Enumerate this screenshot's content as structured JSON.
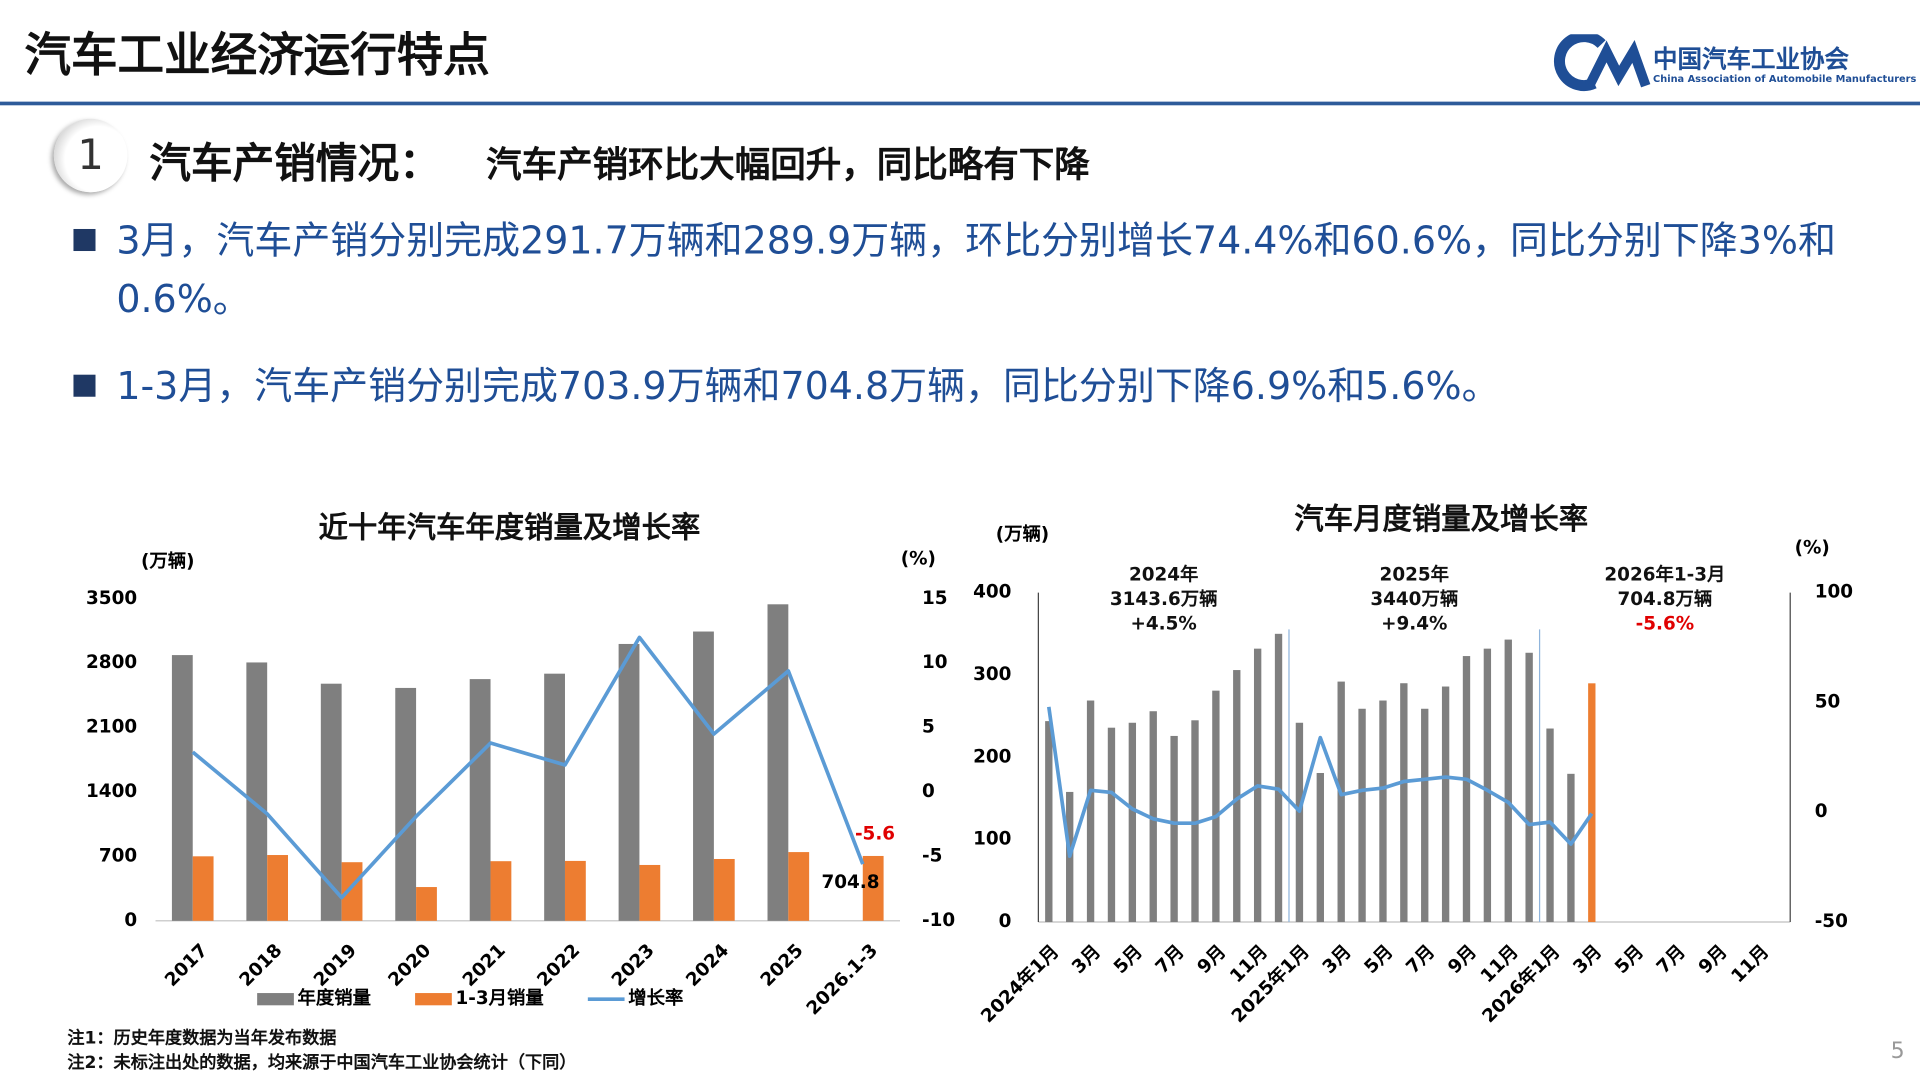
{
  "header": {
    "title": "汽车工业经济运行特点",
    "logo_cn": "中国汽车工业协会",
    "logo_en": "China Association of Automobile Manufacturers"
  },
  "section": {
    "number": "1",
    "title": "汽车产销情况：",
    "subtitle": "汽车产销环比大幅回升，同比略有下降"
  },
  "bullets": [
    "3月，汽车产销分别完成291.7万辆和289.9万辆，环比分别增长74.4%和60.6%，同比分别下降3%和0.6%。",
    "1-3月，汽车产销分别完成703.9万辆和704.8万辆，同比分别下降6.9%和5.6%。"
  ],
  "notes": [
    "注1：历史年度数据为当年发布数据",
    "注2：未标注出处的数据，均来源于中国汽车工业协会统计（下同）"
  ],
  "page_number": "5",
  "chart_data": [
    {
      "type": "bar",
      "title": "近十年汽车年度销量及增长率",
      "y_label": "(万辆)",
      "y2_label": "(%)",
      "categories": [
        "2017",
        "2018",
        "2019",
        "2020",
        "2021",
        "2022",
        "2023",
        "2024",
        "2025",
        "2026.1-3"
      ],
      "series": [
        {
          "name": "年度销量",
          "color": "#7f7f7f",
          "values": [
            2888,
            2808,
            2577,
            2531,
            2627,
            2686,
            3009,
            3144,
            3440,
            null
          ]
        },
        {
          "name": "1-3月销量",
          "color": "#ed7d31",
          "values": [
            701,
            715,
            637,
            367,
            648,
            651,
            607,
            672,
            747,
            704.8
          ],
          "label_last": true,
          "label_color": "#000000"
        },
        {
          "name": "增长率",
          "type": "line",
          "axis": "y2",
          "color": "#5b9bd5",
          "values": [
            3.1,
            -1.7,
            -8.2,
            -1.9,
            3.8,
            2.1,
            12.0,
            4.5,
            9.4,
            -5.6
          ],
          "label_last": true,
          "label_color": "#e00000"
        }
      ],
      "ylim": [
        0,
        3500
      ],
      "yticks": [
        0,
        700,
        1400,
        2100,
        2800,
        3500
      ],
      "y2lim": [
        -10,
        15
      ],
      "y2ticks": [
        -10,
        -5,
        0,
        5,
        10,
        15
      ],
      "legend": "bottom"
    },
    {
      "type": "bar",
      "title": "汽车月度销量及增长率",
      "y_label": "(万辆)",
      "y2_label": "(%)",
      "categories": [
        "2024年1月",
        null,
        "3月",
        null,
        "5月",
        null,
        "7月",
        null,
        "9月",
        null,
        "11月",
        null,
        "2025年1月",
        null,
        "3月",
        null,
        "5月",
        null,
        "7月",
        null,
        "9月",
        null,
        "11月",
        null,
        "2026年1月",
        null,
        "3月",
        null,
        "5月",
        null,
        "7月",
        null,
        "9月",
        null,
        "11月",
        null
      ],
      "series": [
        {
          "color": "#7f7f7f",
          "values": [
            244,
            158,
            269,
            236,
            242,
            256,
            226,
            245,
            281,
            306,
            332,
            350,
            242,
            181,
            292,
            259,
            269,
            290,
            259,
            286,
            323,
            332,
            343,
            327,
            235,
            180,
            289.9,
            null,
            null,
            null,
            null,
            null,
            null,
            null,
            null,
            null
          ]
        },
        {
          "type": "line",
          "axis": "y2",
          "color": "#5b9bd5",
          "values": [
            48,
            -20,
            10,
            9,
            1.5,
            -3,
            -5,
            -5,
            -2,
            6,
            12,
            10.5,
            0.5,
            34,
            8,
            10,
            11,
            14,
            15,
            16,
            15,
            10,
            4.5,
            -5.6,
            -4.5,
            -14.5,
            -0.6,
            null,
            null,
            null,
            null,
            null,
            null,
            null,
            null,
            null
          ]
        }
      ],
      "highlight": {
        "index": 26,
        "color": "#ed7d31"
      },
      "ylim": [
        0,
        400
      ],
      "yticks": [
        0,
        100,
        200,
        300,
        400
      ],
      "y2lim": [
        -50,
        100
      ],
      "y2ticks": [
        -50,
        0,
        50,
        100
      ],
      "axis_lines": true,
      "annotations": [
        {
          "lines": [
            "2024年",
            "3143.6万辆",
            "+4.5%"
          ]
        },
        {
          "lines": [
            "2025年",
            "3440万辆",
            "+9.4%"
          ]
        },
        {
          "lines": [
            "2026年1-3月",
            "704.8万辆",
            "-5.6%"
          ],
          "last_line_color": "#e00000"
        }
      ]
    }
  ]
}
